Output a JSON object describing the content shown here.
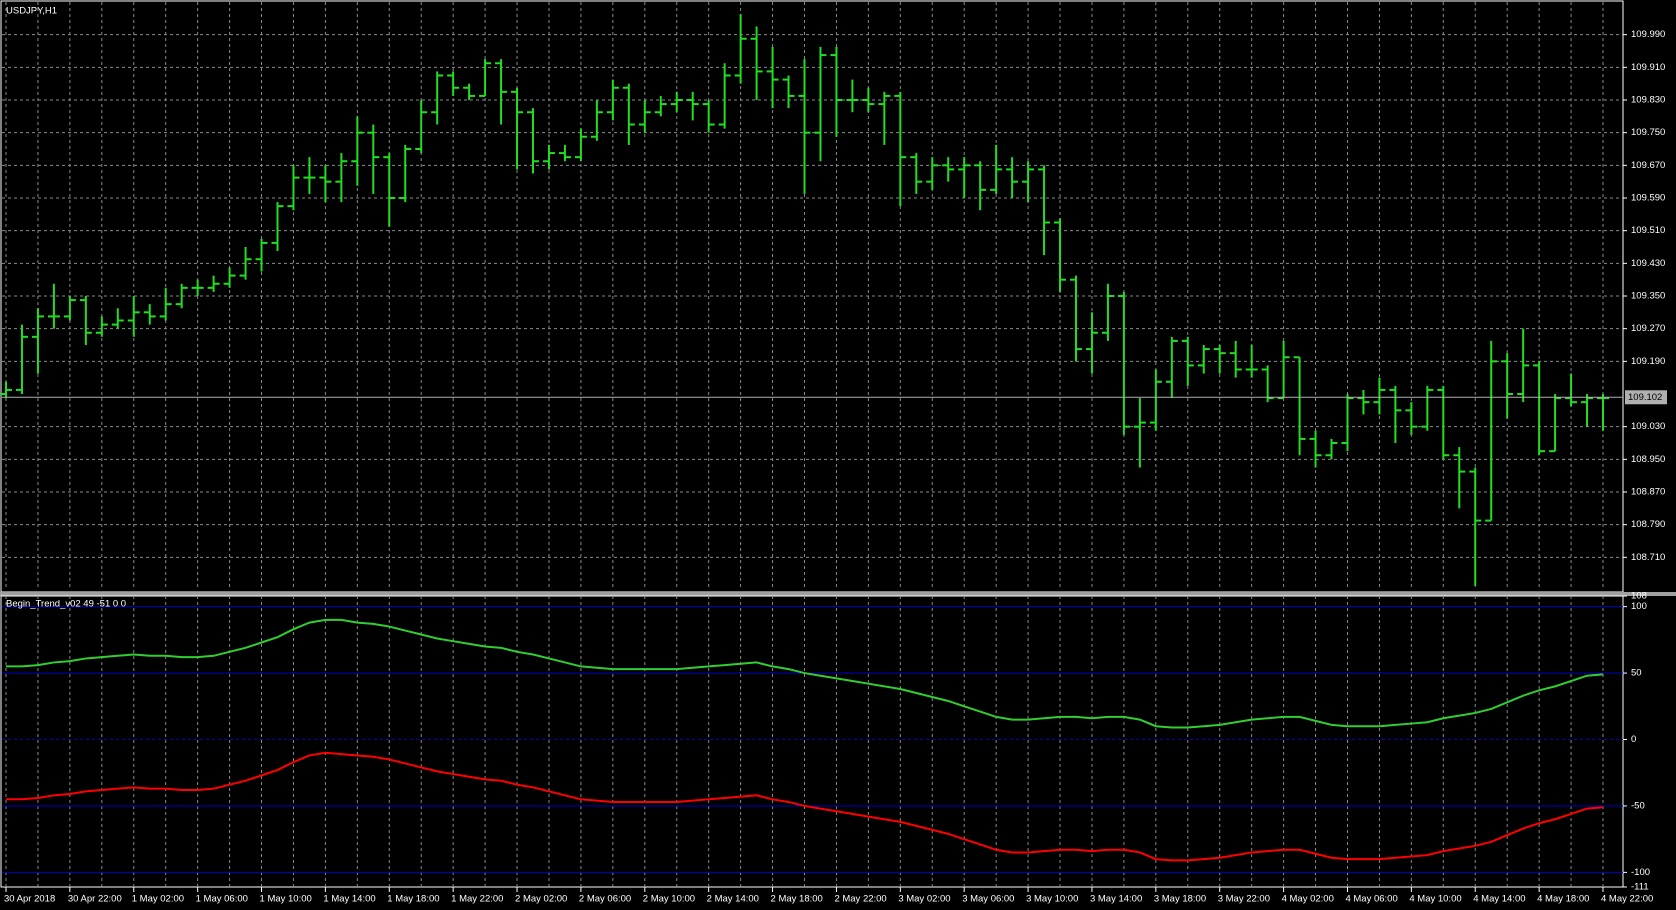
{
  "chart_data": [
    {
      "type": "ohlc",
      "title": "USDJPY,H1",
      "color": "#22dd22",
      "grid": true,
      "categories": [
        "30 Apr 2018",
        null,
        null,
        null,
        "30 Apr 22:00",
        null,
        null,
        null,
        "1 May 02:00",
        null,
        null,
        null,
        "1 May 06:00",
        null,
        null,
        null,
        "1 May 10:00",
        null,
        null,
        null,
        "1 May 14:00",
        null,
        null,
        null,
        "1 May 18:00",
        null,
        null,
        null,
        "1 May 22:00",
        null,
        null,
        null,
        "2 May 02:00",
        null,
        null,
        null,
        "2 May 06:00",
        null,
        null,
        null,
        "2 May 10:00",
        null,
        null,
        null,
        "2 May 14:00",
        null,
        null,
        null,
        "2 May 18:00",
        null,
        null,
        null,
        "2 May 22:00",
        null,
        null,
        null,
        "3 May 02:00",
        null,
        null,
        null,
        "3 May 06:00",
        null,
        null,
        null,
        "3 May 10:00",
        null,
        null,
        null,
        "3 May 14:00",
        null,
        null,
        null,
        "3 May 18:00",
        null,
        null,
        null,
        "3 May 22:00",
        null,
        null,
        null,
        "4 May 02:00",
        null,
        null,
        null,
        "4 May 06:00",
        null,
        null,
        null,
        "4 May 10:00",
        null,
        null,
        null,
        "4 May 14:00",
        null,
        null,
        null,
        "4 May 18:00",
        null,
        null,
        null,
        "4 May 22:00"
      ],
      "open": [
        109.11,
        109.12,
        109.25,
        109.3,
        109.3,
        109.34,
        109.26,
        109.28,
        109.29,
        109.31,
        109.3,
        109.33,
        109.37,
        109.37,
        109.38,
        109.4,
        109.44,
        109.48,
        109.57,
        109.64,
        109.64,
        109.63,
        109.68,
        109.75,
        109.69,
        109.59,
        109.71,
        109.8,
        109.89,
        109.86,
        109.84,
        109.92,
        109.85,
        109.8,
        109.68,
        109.7,
        109.69,
        109.74,
        109.8,
        109.86,
        109.77,
        109.8,
        109.82,
        109.83,
        109.82,
        109.77,
        109.89,
        109.98,
        109.9,
        109.88,
        109.84,
        109.75,
        109.94,
        109.83,
        109.83,
        109.82,
        109.84,
        109.69,
        109.63,
        109.67,
        109.66,
        109.67,
        109.61,
        109.66,
        109.63,
        109.66,
        109.53,
        109.39,
        109.22,
        109.26,
        109.35,
        109.03,
        109.04,
        109.14,
        109.24,
        109.18,
        109.22,
        109.21,
        109.17,
        109.17,
        109.1,
        109.2,
        109.0,
        108.96,
        108.99,
        109.1,
        109.09,
        109.12,
        109.07,
        109.03,
        109.12,
        108.96,
        108.92,
        108.8,
        109.19,
        109.11,
        109.18,
        108.97,
        109.1,
        109.09,
        109.1
      ],
      "high": [
        109.14,
        109.28,
        109.32,
        109.38,
        109.35,
        109.35,
        109.3,
        109.32,
        109.35,
        109.33,
        109.37,
        109.38,
        109.39,
        109.4,
        109.42,
        109.47,
        109.49,
        109.58,
        109.67,
        109.69,
        109.67,
        109.7,
        109.79,
        109.77,
        109.7,
        109.72,
        109.83,
        109.9,
        109.9,
        109.87,
        109.93,
        109.93,
        109.86,
        109.81,
        109.72,
        109.72,
        109.76,
        109.83,
        109.88,
        109.87,
        109.83,
        109.84,
        109.85,
        109.85,
        109.83,
        109.92,
        110.04,
        110.01,
        109.96,
        109.89,
        109.93,
        109.96,
        109.96,
        109.88,
        109.86,
        109.85,
        109.85,
        109.7,
        109.69,
        109.69,
        109.69,
        109.68,
        109.72,
        109.69,
        109.68,
        109.67,
        109.54,
        109.4,
        109.31,
        109.38,
        109.36,
        109.1,
        109.17,
        109.25,
        109.25,
        109.23,
        109.23,
        109.24,
        109.23,
        109.18,
        109.24,
        109.2,
        109.02,
        109.0,
        109.11,
        109.12,
        109.15,
        109.13,
        109.09,
        109.13,
        109.13,
        108.98,
        108.93,
        109.24,
        109.21,
        109.27,
        109.19,
        109.11,
        109.16,
        109.11,
        109.11
      ],
      "low": [
        109.1,
        109.11,
        109.16,
        109.27,
        109.29,
        109.23,
        109.25,
        109.27,
        109.25,
        109.28,
        109.29,
        109.32,
        109.35,
        109.36,
        109.37,
        109.39,
        109.41,
        109.46,
        109.56,
        109.6,
        109.58,
        109.58,
        109.62,
        109.6,
        109.52,
        109.58,
        109.7,
        109.77,
        109.84,
        109.83,
        109.84,
        109.77,
        109.66,
        109.65,
        109.66,
        109.68,
        109.68,
        109.73,
        109.78,
        109.72,
        109.75,
        109.79,
        109.8,
        109.78,
        109.75,
        109.76,
        109.87,
        109.83,
        109.81,
        109.81,
        109.6,
        109.68,
        109.74,
        109.8,
        109.8,
        109.72,
        109.57,
        109.6,
        109.61,
        109.63,
        109.59,
        109.56,
        109.6,
        109.59,
        109.58,
        109.45,
        109.36,
        109.19,
        109.16,
        109.24,
        109.01,
        108.93,
        109.02,
        109.1,
        109.13,
        109.16,
        109.16,
        109.15,
        109.15,
        109.09,
        109.1,
        108.96,
        108.93,
        108.95,
        108.97,
        109.06,
        109.06,
        108.99,
        109.01,
        109.02,
        108.95,
        108.83,
        108.64,
        108.8,
        109.05,
        109.09,
        108.96,
        108.97,
        109.08,
        109.03,
        109.02
      ],
      "close": [
        109.12,
        109.25,
        109.3,
        109.3,
        109.34,
        109.26,
        109.28,
        109.29,
        109.31,
        109.3,
        109.33,
        109.37,
        109.37,
        109.38,
        109.4,
        109.44,
        109.48,
        109.57,
        109.64,
        109.64,
        109.63,
        109.68,
        109.75,
        109.69,
        109.59,
        109.71,
        109.8,
        109.89,
        109.86,
        109.84,
        109.92,
        109.85,
        109.8,
        109.68,
        109.7,
        109.69,
        109.74,
        109.8,
        109.86,
        109.77,
        109.8,
        109.82,
        109.83,
        109.82,
        109.77,
        109.89,
        109.98,
        109.9,
        109.88,
        109.84,
        109.75,
        109.94,
        109.83,
        109.83,
        109.82,
        109.84,
        109.69,
        109.63,
        109.67,
        109.66,
        109.67,
        109.61,
        109.66,
        109.63,
        109.66,
        109.53,
        109.39,
        109.22,
        109.26,
        109.35,
        109.03,
        109.04,
        109.14,
        109.24,
        109.18,
        109.22,
        109.21,
        109.17,
        109.17,
        109.1,
        109.2,
        109.0,
        108.96,
        108.99,
        109.1,
        109.09,
        109.12,
        109.07,
        109.03,
        109.12,
        108.96,
        108.92,
        108.8,
        109.19,
        109.11,
        109.18,
        108.97,
        109.1,
        109.09,
        109.1,
        109.1
      ],
      "current_price": 109.102,
      "ylim": [
        108.63,
        110.07
      ],
      "yticks": [
        {
          "value": 109.99,
          "label": "109.990"
        },
        {
          "value": 109.91,
          "label": "109.910"
        },
        {
          "value": 109.83,
          "label": "109.830"
        },
        {
          "value": 109.75,
          "label": "109.750"
        },
        {
          "value": 109.67,
          "label": "109.670"
        },
        {
          "value": 109.59,
          "label": "109.590"
        },
        {
          "value": 109.51,
          "label": "109.510"
        },
        {
          "value": 109.43,
          "label": "109.430"
        },
        {
          "value": 109.35,
          "label": "109.350"
        },
        {
          "value": 109.27,
          "label": "109.270"
        },
        {
          "value": 109.19,
          "label": "109.190"
        },
        {
          "value": 109.03,
          "label": "109.030"
        },
        {
          "value": 108.95,
          "label": "108.950"
        },
        {
          "value": 108.87,
          "label": "108.870"
        },
        {
          "value": 108.79,
          "label": "108.790"
        },
        {
          "value": 108.71,
          "label": "108.710"
        }
      ]
    },
    {
      "type": "line",
      "title": "Begin_Trend_v02 49 -51 0 0",
      "series": [
        {
          "color": "#32cd32",
          "values": [
            55,
            55,
            56,
            58,
            59,
            61,
            62,
            63,
            64,
            63,
            63,
            62,
            62,
            63,
            66,
            69,
            73,
            77,
            83,
            88,
            90,
            90,
            88,
            87,
            85,
            82,
            79,
            76,
            74,
            72,
            70,
            69,
            66,
            64,
            61,
            58,
            55,
            54,
            53,
            53,
            53,
            53,
            53,
            54,
            55,
            56,
            57,
            58,
            55,
            53,
            50,
            48,
            46,
            44,
            42,
            40,
            38,
            35,
            32,
            29,
            25,
            21,
            17,
            15,
            15,
            16,
            17,
            17,
            16,
            17,
            17,
            15,
            10,
            9,
            9,
            10,
            11,
            13,
            15,
            16,
            17,
            17,
            14,
            11,
            10,
            10,
            10,
            11,
            12,
            13,
            16,
            18,
            20,
            23,
            28,
            33,
            37,
            40,
            44,
            48,
            49
          ]
        },
        {
          "color": "#ff0000",
          "values": [
            -45,
            -45,
            -44,
            -42,
            -41,
            -39,
            -38,
            -37,
            -36,
            -37,
            -37,
            -38,
            -38,
            -37,
            -34,
            -31,
            -27,
            -23,
            -17,
            -12,
            -10,
            -11,
            -12,
            -13,
            -15,
            -18,
            -21,
            -24,
            -26,
            -28,
            -30,
            -31,
            -34,
            -36,
            -39,
            -42,
            -45,
            -46,
            -47,
            -47,
            -47,
            -47,
            -47,
            -46,
            -45,
            -44,
            -43,
            -42,
            -45,
            -47,
            -50,
            -52,
            -54,
            -56,
            -58,
            -60,
            -62,
            -65,
            -68,
            -71,
            -75,
            -79,
            -83,
            -85,
            -85,
            -84,
            -83,
            -83,
            -84,
            -83,
            -83,
            -85,
            -90,
            -91,
            -91,
            -90,
            -89,
            -87,
            -85,
            -84,
            -83,
            -83,
            -86,
            -89,
            -90,
            -90,
            -90,
            -89,
            -88,
            -87,
            -84,
            -82,
            -80,
            -77,
            -72,
            -67,
            -63,
            -60,
            -56,
            -52,
            -51
          ]
        }
      ],
      "levels": [
        100,
        50,
        0,
        -50,
        -100
      ],
      "level_color": "#0000c8",
      "ylim": [
        -111,
        108
      ],
      "yticks": [
        108,
        100,
        50,
        0,
        -50,
        -100,
        -111
      ]
    }
  ]
}
